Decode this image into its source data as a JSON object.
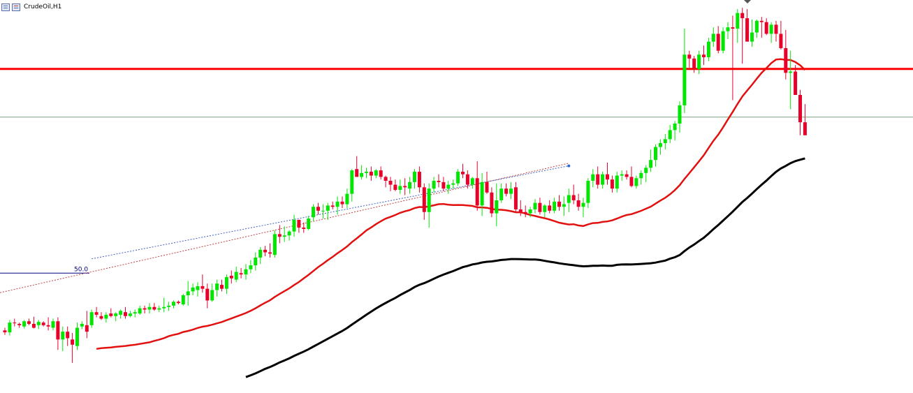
{
  "window": {
    "title": "CrudeOil,H1",
    "icons": [
      "chart-window-icon",
      "chart-properties-icon"
    ]
  },
  "chart_data": {
    "type": "candlestick",
    "title": "CrudeOil,H1",
    "colors": {
      "bull": "#00e600",
      "bear": "#e8002a",
      "horizontal_line": "#ff0000",
      "price_line": "#7fa07f",
      "ma_fast": "#e31010",
      "ma_slow": "#000000",
      "fibo_line": "#000080"
    },
    "price_range": [
      0,
      100
    ],
    "candles_ohlc": [
      [
        52,
        56,
        45,
        49
      ],
      [
        49,
        68,
        44,
        64
      ],
      [
        64,
        70,
        58,
        63
      ],
      [
        62,
        64,
        56,
        60
      ],
      [
        58,
        68,
        55,
        66
      ],
      [
        66,
        70,
        60,
        62
      ],
      [
        62,
        73,
        55,
        56
      ],
      [
        60,
        68,
        54,
        65
      ],
      [
        64,
        66,
        58,
        60
      ],
      [
        60,
        72,
        52,
        58
      ],
      [
        56,
        70,
        52,
        66
      ],
      [
        66,
        72,
        22,
        38
      ],
      [
        38,
        58,
        20,
        50
      ],
      [
        50,
        58,
        28,
        40
      ],
      [
        38,
        48,
        2,
        30
      ],
      [
        28,
        64,
        22,
        56
      ],
      [
        58,
        66,
        54,
        62
      ],
      [
        60,
        82,
        40,
        50
      ],
      [
        60,
        84,
        56,
        80
      ],
      [
        80,
        88,
        72,
        76
      ],
      [
        74,
        80,
        68,
        70
      ],
      [
        70,
        80,
        64,
        76
      ],
      [
        78,
        86,
        72,
        74
      ],
      [
        74,
        80,
        66,
        78
      ],
      [
        76,
        84,
        70,
        82
      ],
      [
        80,
        88,
        70,
        74
      ],
      [
        74,
        82,
        72,
        78
      ],
      [
        78,
        84,
        72,
        80
      ],
      [
        78,
        90,
        76,
        86
      ],
      [
        86,
        90,
        78,
        84
      ],
      [
        84,
        94,
        78,
        88
      ],
      [
        88,
        94,
        82,
        84
      ],
      [
        84,
        90,
        80,
        86
      ],
      [
        86,
        102,
        80,
        88
      ],
      [
        88,
        96,
        82,
        90
      ],
      [
        90,
        98,
        86,
        96
      ],
      [
        96,
        98,
        92,
        94
      ],
      [
        92,
        108,
        90,
        106
      ],
      [
        106,
        128,
        90,
        112
      ],
      [
        112,
        124,
        106,
        118
      ],
      [
        114,
        126,
        104,
        120
      ],
      [
        120,
        138,
        110,
        116
      ],
      [
        116,
        124,
        86,
        98
      ],
      [
        98,
        124,
        96,
        114
      ],
      [
        114,
        130,
        104,
        124
      ],
      [
        122,
        130,
        112,
        116
      ],
      [
        116,
        138,
        108,
        134
      ],
      [
        136,
        144,
        124,
        132
      ],
      [
        130,
        150,
        126,
        142
      ],
      [
        140,
        148,
        132,
        138
      ],
      [
        138,
        154,
        130,
        146
      ],
      [
        146,
        160,
        140,
        152
      ],
      [
        152,
        172,
        144,
        164
      ],
      [
        164,
        180,
        154,
        176
      ],
      [
        176,
        182,
        166,
        172
      ],
      [
        172,
        186,
        164,
        170
      ],
      [
        168,
        206,
        164,
        200
      ],
      [
        200,
        214,
        186,
        196
      ],
      [
        196,
        212,
        188,
        198
      ],
      [
        198,
        206,
        190,
        204
      ],
      [
        204,
        230,
        196,
        222
      ],
      [
        222,
        222,
        202,
        210
      ],
      [
        210,
        218,
        202,
        208
      ],
      [
        208,
        228,
        206,
        224
      ],
      [
        226,
        246,
        220,
        242
      ],
      [
        242,
        248,
        230,
        236
      ],
      [
        236,
        246,
        224,
        236
      ],
      [
        236,
        248,
        222,
        244
      ],
      [
        244,
        250,
        238,
        242
      ],
      [
        242,
        258,
        230,
        250
      ],
      [
        250,
        258,
        240,
        246
      ],
      [
        246,
        270,
        240,
        262
      ],
      [
        262,
        300,
        250,
        298
      ],
      [
        300,
        320,
        290,
        288
      ],
      [
        288,
        306,
        284,
        294
      ],
      [
        294,
        302,
        286,
        296
      ],
      [
        296,
        304,
        282,
        290
      ],
      [
        290,
        300,
        286,
        298
      ],
      [
        298,
        304,
        284,
        288
      ],
      [
        288,
        290,
        272,
        282
      ],
      [
        282,
        288,
        266,
        276
      ],
      [
        276,
        284,
        266,
        268
      ],
      [
        268,
        284,
        262,
        274
      ],
      [
        274,
        286,
        260,
        272
      ],
      [
        270,
        288,
        262,
        280
      ],
      [
        280,
        300,
        270,
        296
      ],
      [
        296,
        304,
        264,
        272
      ],
      [
        272,
        278,
        222,
        234
      ],
      [
        234,
        278,
        210,
        270
      ],
      [
        270,
        288,
        264,
        282
      ],
      [
        282,
        292,
        272,
        280
      ],
      [
        280,
        288,
        266,
        270
      ],
      [
        270,
        282,
        262,
        276
      ],
      [
        276,
        284,
        270,
        278
      ],
      [
        278,
        300,
        274,
        296
      ],
      [
        296,
        308,
        286,
        292
      ],
      [
        292,
        298,
        270,
        276
      ],
      [
        276,
        288,
        270,
        286
      ],
      [
        286,
        312,
        236,
        244
      ],
      [
        244,
        294,
        228,
        280
      ],
      [
        280,
        296,
        262,
        264
      ],
      [
        264,
        272,
        226,
        232
      ],
      [
        232,
        278,
        212,
        252
      ],
      [
        252,
        278,
        248,
        270
      ],
      [
        270,
        278,
        258,
        262
      ],
      [
        262,
        280,
        254,
        270
      ],
      [
        272,
        280,
        234,
        238
      ],
      [
        238,
        252,
        228,
        234
      ],
      [
        234,
        244,
        226,
        232
      ],
      [
        232,
        242,
        226,
        238
      ],
      [
        238,
        254,
        232,
        248
      ],
      [
        248,
        256,
        230,
        234
      ],
      [
        234,
        246,
        226,
        244
      ],
      [
        244,
        252,
        232,
        236
      ],
      [
        236,
        256,
        232,
        250
      ],
      [
        250,
        260,
        236,
        242
      ],
      [
        242,
        258,
        228,
        246
      ],
      [
        248,
        270,
        234,
        260
      ],
      [
        260,
        276,
        246,
        252
      ],
      [
        252,
        262,
        236,
        242
      ],
      [
        242,
        256,
        226,
        248
      ],
      [
        248,
        286,
        240,
        282
      ],
      [
        282,
        300,
        272,
        292
      ],
      [
        292,
        304,
        270,
        276
      ],
      [
        276,
        296,
        270,
        292
      ],
      [
        292,
        310,
        276,
        284
      ],
      [
        284,
        290,
        264,
        270
      ],
      [
        270,
        296,
        264,
        290
      ],
      [
        290,
        298,
        282,
        292
      ],
      [
        292,
        298,
        284,
        288
      ],
      [
        288,
        304,
        272,
        274
      ],
      [
        274,
        290,
        270,
        286
      ],
      [
        286,
        298,
        276,
        294
      ],
      [
        294,
        306,
        280,
        302
      ],
      [
        302,
        330,
        296,
        314
      ],
      [
        314,
        338,
        304,
        334
      ],
      [
        334,
        346,
        322,
        340
      ],
      [
        340,
        354,
        330,
        346
      ],
      [
        346,
        368,
        340,
        360
      ],
      [
        360,
        374,
        344,
        370
      ],
      [
        370,
        404,
        356,
        398
      ],
      [
        398,
        516,
        386,
        476
      ],
      [
        476,
        482,
        456,
        470
      ],
      [
        470,
        474,
        448,
        454
      ],
      [
        454,
        482,
        446,
        476
      ],
      [
        476,
        490,
        460,
        472
      ],
      [
        472,
        502,
        466,
        496
      ],
      [
        496,
        518,
        488,
        508
      ],
      [
        508,
        520,
        478,
        482
      ],
      [
        482,
        518,
        478,
        512
      ],
      [
        512,
        526,
        500,
        518
      ],
      [
        518,
        536,
        406,
        516
      ],
      [
        516,
        546,
        494,
        540
      ],
      [
        540,
        548,
        462,
        532
      ],
      [
        532,
        546,
        500,
        496
      ],
      [
        496,
        530,
        488,
        510
      ],
      [
        510,
        530,
        502,
        528
      ],
      [
        528,
        534,
        502,
        526
      ],
      [
        526,
        532,
        506,
        508
      ],
      [
        508,
        526,
        494,
        522
      ],
      [
        522,
        528,
        496,
        508
      ],
      [
        508,
        528,
        484,
        486
      ],
      [
        486,
        514,
        438,
        448
      ],
      [
        448,
        482,
        392,
        450
      ],
      [
        450,
        460,
        426,
        414
      ],
      [
        414,
        422,
        352,
        372
      ],
      [
        372,
        400,
        358,
        352
      ]
    ],
    "horizontal_levels": [
      {
        "name": "resistance",
        "price": 454
      },
      {
        "name": "current-price",
        "price": 380
      }
    ],
    "moving_averages": [
      {
        "name": "fast",
        "values_per_candle": "computed",
        "period": 50
      },
      {
        "name": "slow",
        "values_per_candle": "computed",
        "period": 100
      }
    ],
    "fibo_label": "50.0",
    "grid": false
  }
}
